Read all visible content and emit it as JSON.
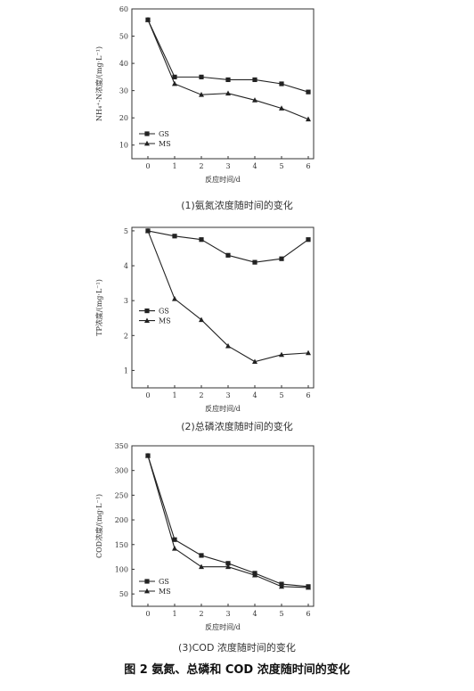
{
  "figure_caption": "图 2 氨氮、总磷和 COD 浓度随时间的变化",
  "chart_data": [
    {
      "type": "line",
      "caption": "(1)氨氮浓度随时间的变化",
      "xlabel": "反应时间/d",
      "ylabel": "NH₄⁺-N浓度/(mg·L⁻¹)",
      "x": [
        0,
        1,
        2,
        3,
        4,
        5,
        6
      ],
      "xlim": [
        -0.6,
        6.2
      ],
      "ylim": [
        5,
        60
      ],
      "yticks": [
        10,
        20,
        30,
        40,
        50,
        60
      ],
      "legend": "bottom-left",
      "series": [
        {
          "name": "GS",
          "marker": "square",
          "values": [
            56,
            35,
            35,
            34,
            34,
            32.5,
            29.5
          ]
        },
        {
          "name": "MS",
          "marker": "triangle",
          "values": [
            56,
            32.5,
            28.5,
            29,
            26.5,
            23.5,
            19.5
          ]
        }
      ]
    },
    {
      "type": "line",
      "caption": "(2)总磷浓度随时间的变化",
      "xlabel": "反应时间/d",
      "ylabel": "TP浓度/(mg·L⁻¹)",
      "x": [
        0,
        1,
        2,
        3,
        4,
        5,
        6
      ],
      "xlim": [
        -0.6,
        6.2
      ],
      "ylim": [
        0.5,
        5.1
      ],
      "yticks": [
        1,
        2,
        3,
        4,
        5
      ],
      "legend": "center-left",
      "series": [
        {
          "name": "GS",
          "marker": "square",
          "values": [
            5,
            4.85,
            4.75,
            4.3,
            4.1,
            4.2,
            4.75
          ]
        },
        {
          "name": "MS",
          "marker": "triangle",
          "values": [
            5,
            3.05,
            2.45,
            1.7,
            1.25,
            1.45,
            1.5
          ]
        }
      ]
    },
    {
      "type": "line",
      "caption": "(3)COD 浓度随时间的变化",
      "xlabel": "反应时间/d",
      "ylabel": "COD浓度/(mg·L⁻¹)",
      "x": [
        0,
        1,
        2,
        3,
        4,
        5,
        6
      ],
      "xlim": [
        -0.6,
        6.2
      ],
      "ylim": [
        25,
        350
      ],
      "yticks": [
        50,
        100,
        150,
        200,
        250,
        300,
        350
      ],
      "legend": "bottom-left",
      "series": [
        {
          "name": "GS",
          "marker": "square",
          "values": [
            330,
            160,
            128,
            112,
            92,
            70,
            65
          ]
        },
        {
          "name": "MS",
          "marker": "triangle",
          "values": [
            330,
            142,
            105,
            105,
            88,
            65,
            63
          ]
        }
      ]
    }
  ]
}
